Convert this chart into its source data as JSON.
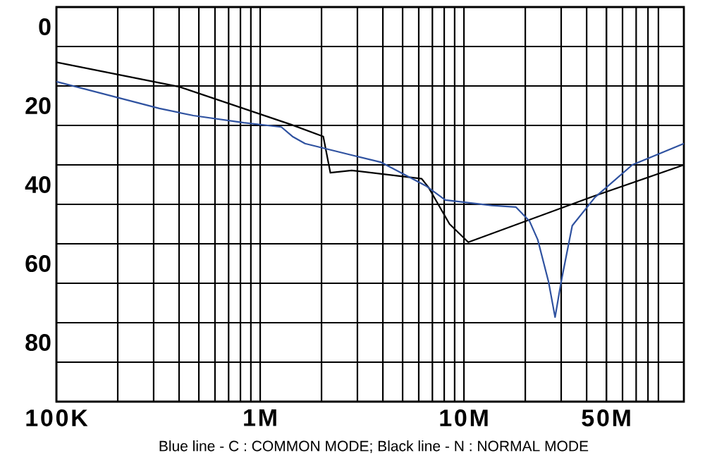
{
  "chart_data": {
    "type": "line",
    "log": "x",
    "xlim": [
      100000,
      120000000
    ],
    "ylim": [
      100,
      0
    ],
    "xticks": [
      {
        "value": 100000,
        "label": "100K"
      },
      {
        "value": 1000000,
        "label": "1M"
      },
      {
        "value": 10000000,
        "label": "10M"
      },
      {
        "value": 50000000,
        "label": "50M"
      }
    ],
    "yticks": [
      0,
      {
        "value": 10,
        "label": null
      },
      20,
      {
        "value": 30,
        "label": null
      },
      40,
      {
        "value": 50,
        "label": null
      },
      60,
      {
        "value": 70,
        "label": null
      },
      80,
      {
        "value": 90,
        "label": null
      },
      {
        "value": 100,
        "label": null
      }
    ],
    "grid": true,
    "marker": "none",
    "line_style": "solid",
    "series": [
      {
        "color": "#000000",
        "x": [
          100000,
          400000,
          1420000,
          2040000,
          2210000,
          2810000,
          6200000,
          6700000,
          8500000,
          10500000,
          43000000,
          120000000
        ],
        "values": [
          14,
          20.2,
          29.8,
          32.8,
          42,
          41.4,
          43.5,
          45.7,
          55,
          59.6,
          48,
          40
        ]
      },
      {
        "color": "#2f52a0",
        "x": [
          100000,
          320000,
          470000,
          830000,
          1270000,
          1440000,
          1660000,
          2800000,
          3900000,
          6500000,
          8100000,
          13700000,
          18000000,
          21000000,
          23000000,
          26000000,
          28000000,
          30000000,
          34000000,
          44000000,
          67000000,
          120000000
        ],
        "values": [
          18.9,
          25.7,
          27.5,
          29.3,
          30.4,
          32.8,
          34.6,
          37.5,
          39.3,
          45.3,
          48.9,
          50.3,
          50.7,
          54.3,
          58.9,
          69.6,
          78.6,
          69.6,
          55.4,
          48.2,
          40,
          34.6
        ]
      }
    ],
    "annotations": [
      "Blue line - C : COMMON MODE; Black line - N : NORMAL MODE"
    ]
  }
}
